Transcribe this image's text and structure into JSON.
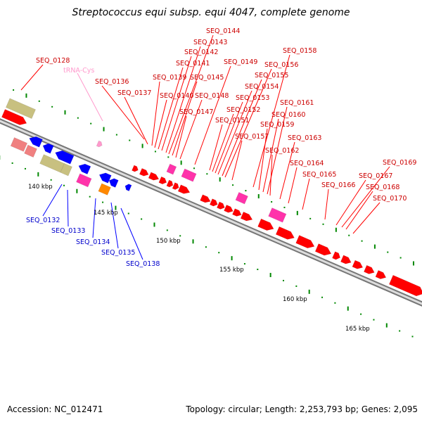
{
  "title": "Streptococcus equi subsp. equi 4047, complete genome",
  "accession": "Accession: NC_012471",
  "topology": "Topology: circular; Length: 2,253,793 bp; Genes: 2,095",
  "colors": {
    "forward_cds": "#ff0000",
    "reverse_cds": "#0000ff",
    "forward_label": "#cc0000",
    "reverse_label": "#0000cc",
    "trna": "#ff99cc",
    "misc_magenta": "#ff33aa",
    "rrna_olive": "#c8c080",
    "pseudo_salmon": "#f08080",
    "orange": "#ff8800",
    "backbone": "#888888",
    "tick": "#008800"
  },
  "ticks": [
    "140 kbp",
    "145 kbp",
    "150 kbp",
    "155 kbp",
    "160 kbp",
    "165 kbp"
  ],
  "forward_labels": [
    "SEQ_0128",
    "SEQ_0136",
    "SEQ_0137",
    "SEQ_0139",
    "SEQ_0140",
    "SEQ_0141",
    "SEQ_0142",
    "SEQ_0143",
    "SEQ_0144",
    "SEQ_0145",
    "SEQ_0147",
    "SEQ_0148",
    "SEQ_0149",
    "SEQ_0151",
    "SEQ_0152",
    "SEQ_0153",
    "SEQ_0154",
    "SEQ_0155",
    "SEQ_0156",
    "SEQ_0157",
    "SEQ_0158",
    "SEQ_0159",
    "SEQ_0160",
    "SEQ_0161",
    "SEQ_0162",
    "SEQ_0163",
    "SEQ_0164",
    "SEQ_0165",
    "SEQ_0166",
    "SEQ_0167",
    "SEQ_0168",
    "SEQ_0169",
    "SEQ_0170"
  ],
  "trna_label": "tRNA-Cys",
  "reverse_labels": [
    "SEQ_0132",
    "SEQ_0133",
    "SEQ_0134",
    "SEQ_0135",
    "SEQ_0138"
  ]
}
